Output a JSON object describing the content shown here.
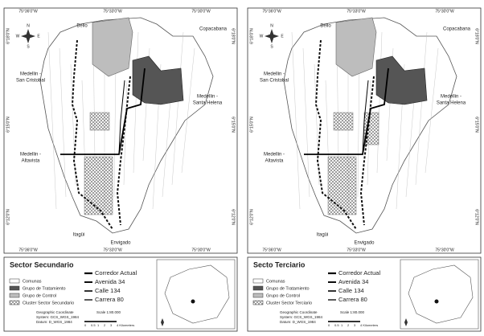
{
  "panels": [
    {
      "legend": {
        "title": "Sector Secundario",
        "items": [
          "Comunas",
          "Grupo de Tratamiento",
          "Grupo de Control",
          "Cluster Sector Secundario"
        ],
        "lines": [
          "Corredor Actual",
          "Avenida 34",
          "Calle 134",
          "Carrera 80"
        ]
      }
    },
    {
      "legend": {
        "title": "Secto Terciario",
        "items": [
          "Comunas",
          "Grupo de Tratamiento",
          "Grupo de Control",
          "Cluster Sector Terciario"
        ],
        "lines": [
          "Corredor Actual",
          "Avenida 34",
          "Calle 134",
          "Carrera 80"
        ]
      }
    }
  ],
  "longitudes": [
    "75°36'0\"W",
    "75°33'0\"W",
    "75°30'0\"W"
  ],
  "latitudes": [
    "6°18'0\"N",
    "6°15'0\"N",
    "6°12'0\"N"
  ],
  "places": [
    [
      "Bello"
    ],
    [
      "Copacabana"
    ],
    [
      "Medellin -",
      "San Cristobal"
    ],
    [
      "Medellin -",
      "Santa Helena"
    ],
    [
      "Medellin -",
      "Altavista"
    ],
    [
      "Itagüi"
    ],
    [
      "Envigado"
    ]
  ],
  "compass": [
    "N",
    "S",
    "E",
    "W"
  ],
  "footer": {
    "crs": [
      "Geographic Coordinate",
      "System: GCS_WGS_1984",
      "Datum: D_WGS_1984"
    ],
    "scale": "Scale 1:80.000",
    "scalebar": [
      "0",
      "0.5",
      "1",
      "2",
      "3",
      "4 Kilometers"
    ]
  }
}
